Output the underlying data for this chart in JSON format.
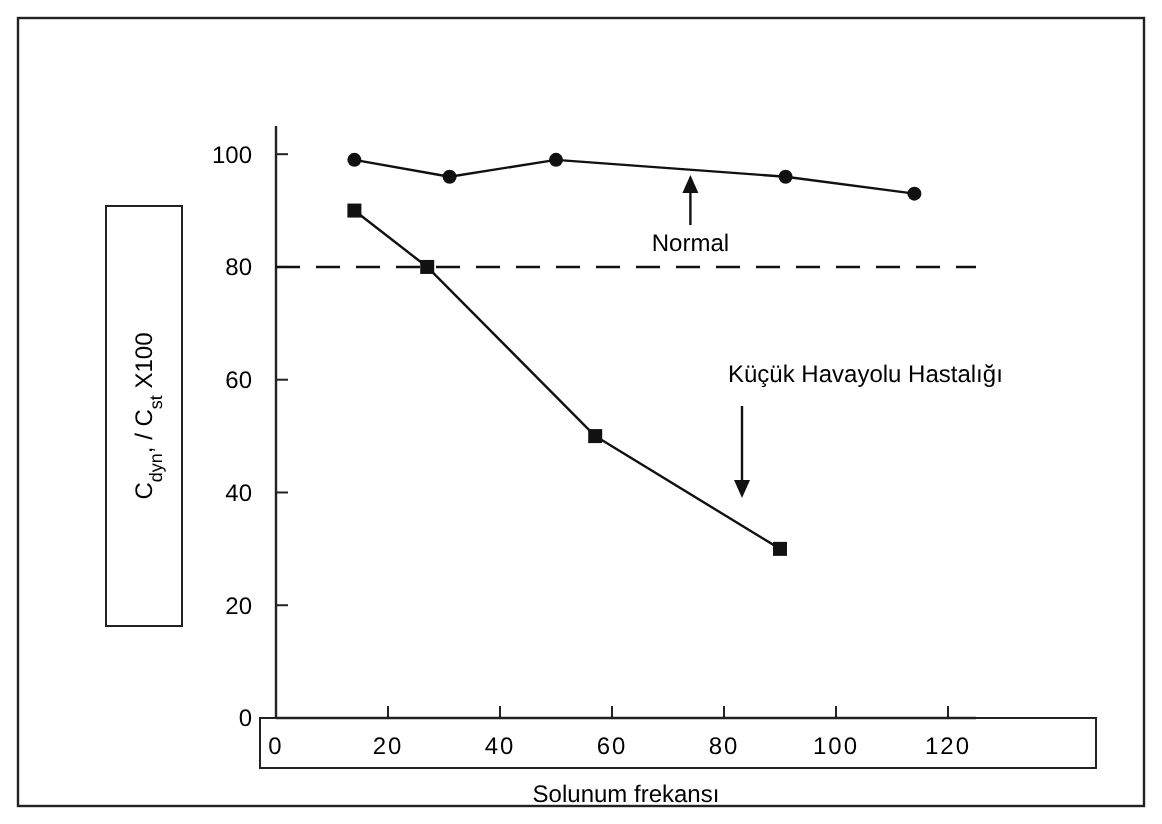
{
  "chart_data": {
    "type": "line",
    "ylabel": "C$_{dyn}$, / C$_{st}$ X100",
    "xlabel": "Solunum frekansı",
    "xlim": [
      0,
      125
    ],
    "xticks": [
      0,
      20,
      40,
      60,
      80,
      100,
      120
    ],
    "ylim": [
      0,
      105
    ],
    "yticks": [
      0,
      20,
      40,
      60,
      80,
      100
    ],
    "series": [
      {
        "color": "#111111",
        "marker": "circle",
        "x": [
          14,
          31,
          50,
          91,
          114
        ],
        "values": [
          99,
          96,
          99,
          96,
          93
        ]
      },
      {
        "color": "#111111",
        "marker": "square",
        "x": [
          14,
          27,
          57,
          90
        ],
        "values": [
          90,
          80,
          50,
          30
        ]
      }
    ],
    "ref_lines": [
      {
        "axis": "y",
        "value": 80,
        "line_style": "dashed",
        "color": "#111111"
      }
    ],
    "annotations": [
      {
        "text": "Normal",
        "x": 74,
        "y": 97
      },
      "Küçük Havayolu Hastalığı"
    ],
    "grid": false
  }
}
